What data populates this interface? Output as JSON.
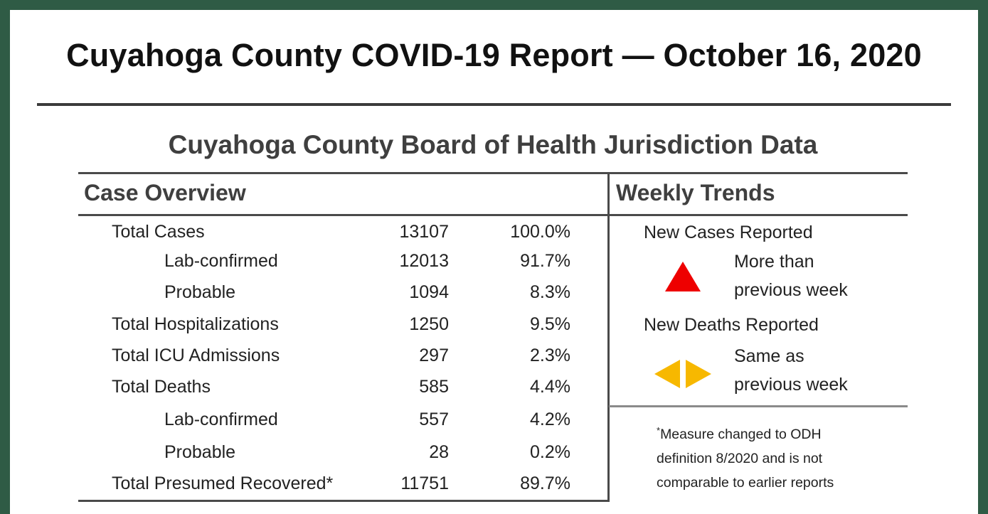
{
  "report": {
    "title": "Cuyahoga County COVID-19 Report — October 16, 2020",
    "subtitle": "Cuyahoga County Board of Health Jurisdiction Data"
  },
  "case_overview": {
    "heading": "Case Overview",
    "rows": [
      {
        "label": "Total Cases",
        "count": "13107",
        "percent": "100.0%",
        "indent": false
      },
      {
        "label": "Lab-confirmed",
        "count": "12013",
        "percent": "91.7%",
        "indent": true
      },
      {
        "label": "Probable",
        "count": "1094",
        "percent": "8.3%",
        "indent": true
      },
      {
        "label": "Total Hospitalizations",
        "count": "1250",
        "percent": "9.5%",
        "indent": false
      },
      {
        "label": "Total ICU Admissions",
        "count": "297",
        "percent": "2.3%",
        "indent": false
      },
      {
        "label": "Total Deaths",
        "count": "585",
        "percent": "4.4%",
        "indent": false
      },
      {
        "label": "Lab-confirmed",
        "count": "557",
        "percent": "4.2%",
        "indent": true
      },
      {
        "label": "Probable",
        "count": "28",
        "percent": "0.2%",
        "indent": true
      },
      {
        "label": "Total Presumed Recovered*",
        "count": "11751",
        "percent": "89.7%",
        "indent": false
      }
    ]
  },
  "weekly_trends": {
    "heading": "Weekly Trends",
    "new_cases": {
      "label": "New Cases Reported",
      "status_line1": "More than",
      "status_line2": "previous week",
      "icon": "up-triangle-icon",
      "color": "#ee0000"
    },
    "new_deaths": {
      "label": "New Deaths Reported",
      "status_line1": "Same as",
      "status_line2": "previous week",
      "icon": "left-right-arrows-icon",
      "color": "#f7b800"
    },
    "note": {
      "asterisk": "*",
      "line1": "Measure changed to ODH",
      "line2": "definition 8/2020 and is not",
      "line3": "comparable to earlier reports"
    }
  }
}
